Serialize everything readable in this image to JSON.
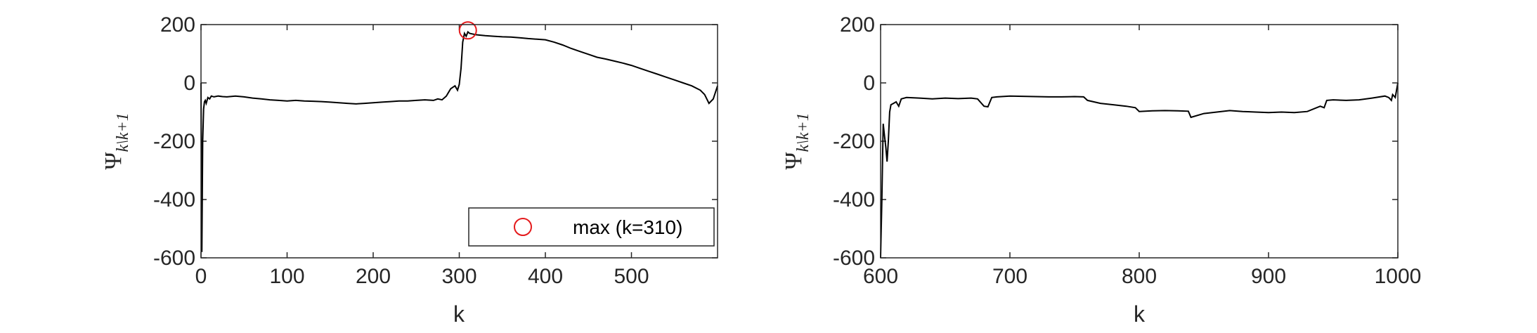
{
  "chart_data": [
    {
      "type": "line",
      "xlabel": "k",
      "ylabel": "Ψ",
      "ylabel_subscript": "k\\k+1",
      "xlim": [
        0,
        600
      ],
      "ylim": [
        -600,
        200
      ],
      "xticks": [
        0,
        100,
        200,
        300,
        400,
        500
      ],
      "yticks": [
        200,
        0,
        -200,
        -400,
        -600
      ],
      "line_color": "#000000",
      "x": [
        0,
        1,
        2,
        3,
        4,
        5,
        6,
        8,
        10,
        12,
        15,
        20,
        25,
        30,
        40,
        50,
        60,
        70,
        80,
        90,
        100,
        110,
        120,
        130,
        140,
        150,
        160,
        170,
        180,
        190,
        200,
        210,
        220,
        230,
        240,
        250,
        260,
        270,
        275,
        280,
        285,
        290,
        295,
        298,
        300,
        302,
        304,
        306,
        308,
        310,
        312,
        315,
        320,
        330,
        340,
        350,
        360,
        370,
        380,
        390,
        400,
        410,
        420,
        430,
        440,
        450,
        460,
        470,
        480,
        490,
        500,
        510,
        520,
        530,
        540,
        550,
        560,
        570,
        580,
        585,
        590,
        595,
        600
      ],
      "y": [
        0,
        -580,
        -200,
        -90,
        -65,
        -60,
        -70,
        -50,
        -55,
        -45,
        -48,
        -45,
        -47,
        -48,
        -45,
        -48,
        -52,
        -55,
        -58,
        -60,
        -62,
        -60,
        -62,
        -63,
        -64,
        -66,
        -68,
        -70,
        -72,
        -70,
        -68,
        -66,
        -64,
        -62,
        -62,
        -60,
        -58,
        -60,
        -55,
        -58,
        -45,
        -20,
        -10,
        -25,
        -5,
        50,
        140,
        170,
        160,
        175,
        170,
        168,
        165,
        162,
        160,
        158,
        157,
        155,
        152,
        150,
        148,
        140,
        130,
        118,
        108,
        98,
        88,
        82,
        75,
        68,
        60,
        50,
        40,
        30,
        20,
        10,
        0,
        -10,
        -25,
        -40,
        -70,
        -55,
        -10
      ],
      "marker": {
        "x": 310,
        "y": 180,
        "color": "#e41a1c"
      },
      "legend": {
        "label": "max (k=310)",
        "placement": "bottom-right"
      }
    },
    {
      "type": "line",
      "xlabel": "k",
      "ylabel": "Ψ",
      "ylabel_subscript": "k\\k+1",
      "xlim": [
        600,
        1000
      ],
      "ylim": [
        -600,
        200
      ],
      "xticks": [
        600,
        700,
        800,
        900,
        1000
      ],
      "yticks": [
        200,
        0,
        -200,
        -400,
        -600
      ],
      "line_color": "#000000",
      "x": [
        600,
        601,
        602,
        603,
        604,
        605,
        606,
        607,
        608,
        610,
        612,
        614,
        616,
        620,
        630,
        640,
        650,
        660,
        670,
        675,
        680,
        683,
        686,
        690,
        700,
        710,
        720,
        730,
        740,
        750,
        757,
        760,
        770,
        780,
        790,
        797,
        800,
        810,
        820,
        830,
        838,
        840,
        850,
        860,
        870,
        880,
        890,
        900,
        910,
        920,
        930,
        940,
        943,
        945,
        950,
        960,
        970,
        980,
        990,
        993,
        995,
        996,
        998,
        1000
      ],
      "y": [
        -600,
        -400,
        -140,
        -180,
        -220,
        -270,
        -200,
        -100,
        -75,
        -70,
        -65,
        -80,
        -55,
        -50,
        -52,
        -55,
        -52,
        -54,
        -52,
        -55,
        -80,
        -82,
        -50,
        -48,
        -45,
        -46,
        -47,
        -48,
        -48,
        -47,
        -48,
        -60,
        -70,
        -75,
        -80,
        -85,
        -98,
        -96,
        -95,
        -96,
        -97,
        -118,
        -105,
        -100,
        -95,
        -98,
        -100,
        -102,
        -100,
        -102,
        -98,
        -80,
        -85,
        -60,
        -58,
        -60,
        -58,
        -52,
        -45,
        -50,
        -60,
        -40,
        -50,
        0
      ]
    }
  ]
}
